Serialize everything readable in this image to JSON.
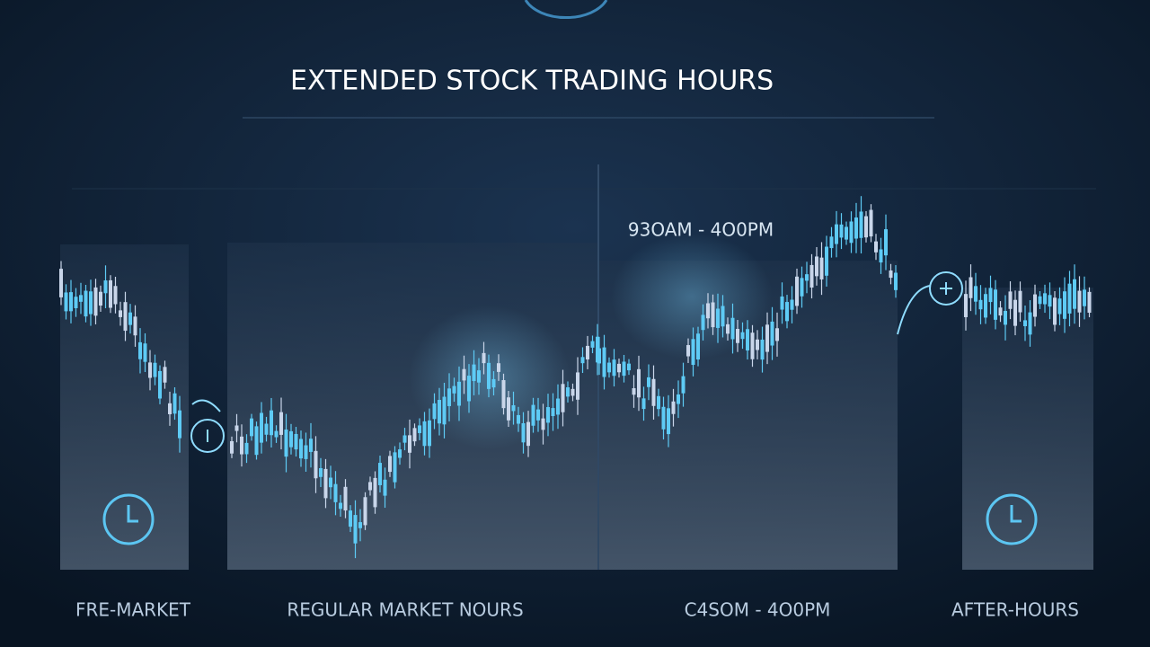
{
  "header": {
    "title": "EXTENDED STOCK TRADING HOURS"
  },
  "annotation": "93OAM - 4O0PM",
  "sessions": [
    {
      "label": "FRE-MARKET"
    },
    {
      "label": "REGULAR MARKET NOURS"
    },
    {
      "label": "C4SOM - 4O0PM"
    },
    {
      "label": "AFTER-HOURS"
    }
  ]
}
